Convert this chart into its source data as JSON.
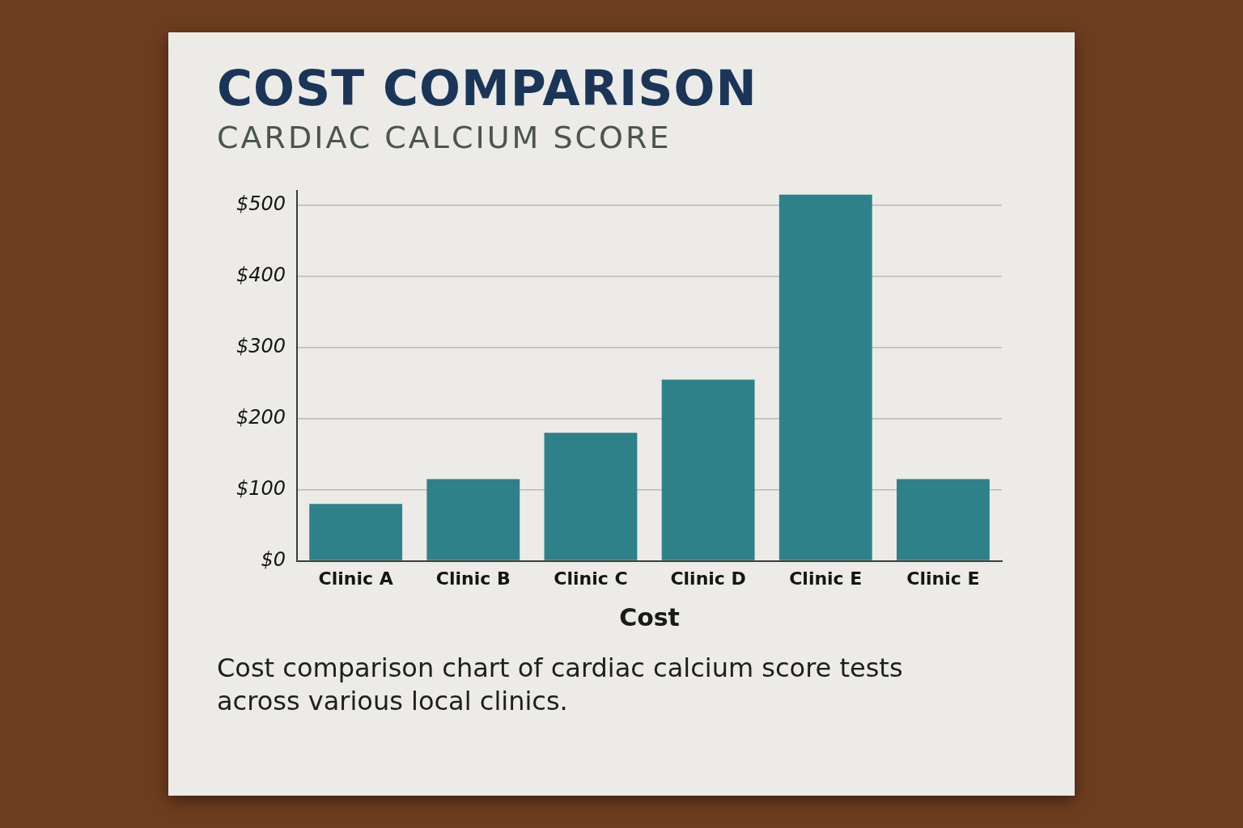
{
  "chart_data": {
    "type": "bar",
    "title": "COST COMPARISON",
    "subtitle": "CARDIAC CALCIUM SCORE",
    "xlabel": "Cost",
    "categories": [
      "Clinic A",
      "Clinic B",
      "Clinic C",
      "Clinic D",
      "Clinic E",
      "Clinic E"
    ],
    "values": [
      80,
      115,
      180,
      255,
      515,
      115
    ],
    "color": "#2e8188",
    "ylim": [
      0,
      520
    ],
    "yticks": [
      {
        "value": 0,
        "label": "$0"
      },
      {
        "value": 100,
        "label": "$100"
      },
      {
        "value": 200,
        "label": "$200"
      },
      {
        "value": 300,
        "label": "$300"
      },
      {
        "value": 400,
        "label": "$400"
      },
      {
        "value": 500,
        "label": "$500"
      }
    ],
    "grid": "y",
    "annotations": [
      "Cost comparison chart of cardiac calcium score tests across various local clinics."
    ]
  }
}
